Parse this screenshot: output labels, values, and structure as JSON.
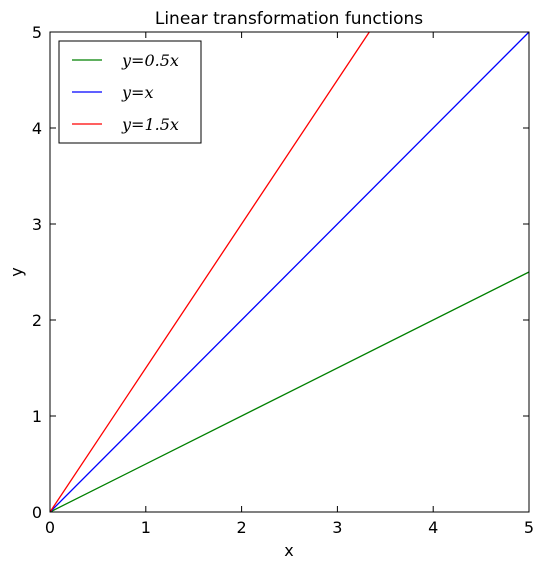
{
  "chart_data": {
    "type": "line",
    "title": "Linear transformation functions",
    "xlabel": "x",
    "ylabel": "y",
    "xlim": [
      0,
      5
    ],
    "ylim": [
      0,
      5
    ],
    "x_ticks": [
      "0",
      "1",
      "2",
      "3",
      "4",
      "5"
    ],
    "y_ticks": [
      "0",
      "1",
      "2",
      "3",
      "4",
      "5"
    ],
    "grid": false,
    "legend_position": "top-left",
    "series": [
      {
        "name": "y=0.5x",
        "color": "#008000",
        "points": [
          [
            0,
            0
          ],
          [
            5,
            2.5
          ]
        ]
      },
      {
        "name": "y=x",
        "color": "#0000ff",
        "points": [
          [
            0,
            0
          ],
          [
            5,
            5
          ]
        ]
      },
      {
        "name": "y=1.5x",
        "color": "#ff0000",
        "points": [
          [
            0,
            0
          ],
          [
            3.3333,
            5
          ]
        ]
      }
    ]
  }
}
